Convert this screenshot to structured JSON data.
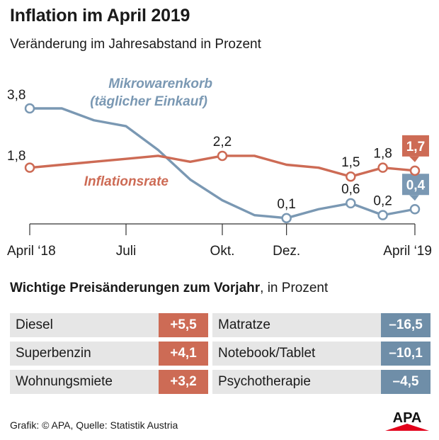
{
  "header": {
    "title": "Inflation im April 2019",
    "subtitle": "Veränderung im Jahresabstand in Prozent"
  },
  "chart_data": {
    "type": "line",
    "title": "Inflation im April 2019",
    "subtitle": "Veränderung im Jahresabstand in Prozent",
    "x_ticks": [
      "April ‘18",
      "Juli",
      "Okt.",
      "Dez.",
      "April ‘19"
    ],
    "x_tick_index": [
      0,
      3,
      6,
      8,
      12
    ],
    "ylim": [
      0,
      4.1
    ],
    "series": [
      {
        "name": "Mikrowarenkorb (täglicher Einkauf)",
        "label_lines": [
          "Mikrowarenkorb",
          "(täglicher Einkauf)"
        ],
        "color": "#7a98b3",
        "x": [
          0,
          1,
          2,
          3,
          4,
          5,
          6,
          7,
          8,
          9,
          10,
          11,
          12
        ],
        "values": [
          3.8,
          3.8,
          3.4,
          3.2,
          2.4,
          1.4,
          0.7,
          0.2,
          0.1,
          0.4,
          0.6,
          0.2,
          0.4
        ],
        "markers": [
          {
            "i": 0,
            "label": ""
          },
          {
            "i": 8,
            "label": "0,1"
          },
          {
            "i": 10,
            "label": "0,6"
          },
          {
            "i": 11,
            "label": "0,2"
          },
          {
            "i": 12,
            "label": "0,4",
            "highlight": true
          }
        ]
      },
      {
        "name": "Inflationsrate",
        "label_lines": [
          "Inflationsrate"
        ],
        "color": "#cd6b55",
        "x": [
          0,
          1,
          2,
          3,
          4,
          5,
          6,
          7,
          8,
          9,
          10,
          11,
          12
        ],
        "values": [
          1.8,
          1.9,
          2.0,
          2.1,
          2.2,
          2.0,
          2.2,
          2.2,
          1.9,
          1.8,
          1.5,
          1.8,
          1.7
        ],
        "markers": [
          {
            "i": 0,
            "label": ""
          },
          {
            "i": 6,
            "label": "2,2"
          },
          {
            "i": 10,
            "label": "1,5"
          },
          {
            "i": 11,
            "label": "1,8"
          },
          {
            "i": 12,
            "label": "1,7",
            "highlight": true
          }
        ]
      }
    ],
    "left_labels": [
      {
        "series": 0,
        "label": "3,8"
      },
      {
        "series": 1,
        "label": "1,8"
      }
    ]
  },
  "price_changes": {
    "title_bold": "Wichtige Preisänderungen zum Vorjahr",
    "title_rest": ", in Prozent",
    "increases": [
      {
        "label": "Diesel",
        "value": "+5,5"
      },
      {
        "label": "Superbenzin",
        "value": "+4,1"
      },
      {
        "label": "Wohnungsmiete",
        "value": "+3,2"
      }
    ],
    "decreases": [
      {
        "label": "Matratze",
        "value": "–16,5"
      },
      {
        "label": "Notebook/Tablet",
        "value": "–10,1"
      },
      {
        "label": "Psychotherapie",
        "value": "–4,5"
      }
    ]
  },
  "footer": {
    "credit": "Grafik: © APA, Quelle: Statistik Austria",
    "logo_text": "APA"
  },
  "colors": {
    "positive": "#cd6b55",
    "negative": "#6f8ea8",
    "row_bg": "#e6e6e6"
  }
}
